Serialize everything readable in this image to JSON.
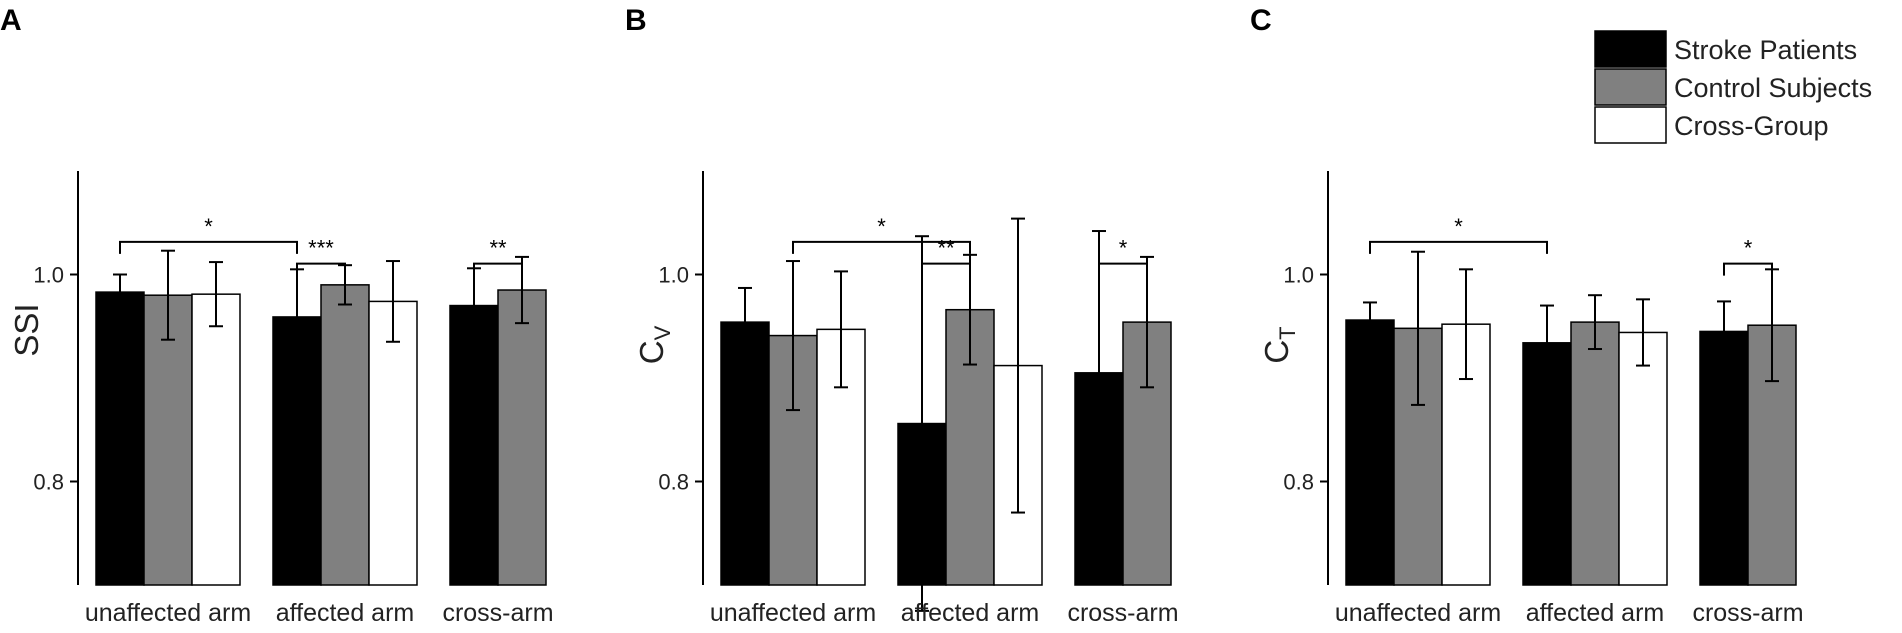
{
  "figure": {
    "legend": [
      {
        "label": "Stroke Patients",
        "color": "#000000"
      },
      {
        "label": "Control Subjects",
        "color": "#808080"
      },
      {
        "label": "Cross-Group",
        "color": "#ffffff"
      }
    ]
  },
  "chart_data": [
    {
      "type": "bar",
      "panel": "A",
      "ylabel": "SSI",
      "ylabel_sub": "",
      "ylim": [
        0.7,
        1.1
      ],
      "yticks": [
        0.8,
        1.0
      ],
      "ytick_labels": [
        "0.8",
        "1.0"
      ],
      "categories": [
        "unaffected arm",
        "affected arm",
        "cross-arm"
      ],
      "series": [
        {
          "name": "Stroke Patients",
          "values": [
            0.983,
            0.959,
            0.97
          ],
          "err_low": [
            0.017,
            0.046,
            0.036
          ],
          "err_high": [
            0.017,
            0.046,
            0.036
          ]
        },
        {
          "name": "Control Subjects",
          "values": [
            0.98,
            0.99,
            0.985
          ],
          "err_low": [
            0.043,
            0.019,
            0.032
          ],
          "err_high": [
            0.043,
            0.019,
            0.032
          ]
        },
        {
          "name": "Cross-Group",
          "values": [
            0.981,
            0.974,
            null
          ],
          "err_low": [
            0.031,
            0.039,
            null
          ],
          "err_high": [
            0.031,
            0.039,
            null
          ]
        }
      ],
      "significance": [
        {
          "from_cat": 0,
          "from_series": 0,
          "to_cat": 1,
          "to_series": 0,
          "y": 1.0315,
          "label": "*"
        },
        {
          "from_cat": 1,
          "from_series": 0,
          "to_cat": 1,
          "to_series": 1,
          "y": 1.0105,
          "label": "***"
        },
        {
          "from_cat": 2,
          "from_series": 0,
          "to_cat": 2,
          "to_series": 1,
          "y": 1.0105,
          "label": "**"
        }
      ]
    },
    {
      "type": "bar",
      "panel": "B",
      "ylabel": "C",
      "ylabel_sub": "V",
      "ylim": [
        0.7,
        1.1
      ],
      "yticks": [
        0.8,
        1.0
      ],
      "ytick_labels": [
        "0.8",
        "1.0"
      ],
      "categories": [
        "unaffected arm",
        "affected arm",
        "cross-arm"
      ],
      "series": [
        {
          "name": "Stroke Patients",
          "values": [
            0.954,
            0.856,
            0.905
          ],
          "err_low": [
            0.033,
            0.181,
            0.137
          ],
          "err_high": [
            0.033,
            0.181,
            0.137
          ]
        },
        {
          "name": "Control Subjects",
          "values": [
            0.941,
            0.966,
            0.954
          ],
          "err_low": [
            0.072,
            0.053,
            0.063
          ],
          "err_high": [
            0.072,
            0.053,
            0.063
          ]
        },
        {
          "name": "Cross-Group",
          "values": [
            0.947,
            0.912,
            null
          ],
          "err_low": [
            0.056,
            0.142,
            null
          ],
          "err_high": [
            0.056,
            0.142,
            null
          ]
        }
      ],
      "significance": [
        {
          "from_cat": 0,
          "from_series": 1,
          "to_cat": 1,
          "to_series": 1,
          "y": 1.0315,
          "label": "*"
        },
        {
          "from_cat": 1,
          "from_series": 0,
          "to_cat": 1,
          "to_series": 1,
          "y": 1.0105,
          "label": "**"
        },
        {
          "from_cat": 2,
          "from_series": 0,
          "to_cat": 2,
          "to_series": 1,
          "y": 1.0105,
          "label": "*"
        }
      ]
    },
    {
      "type": "bar",
      "panel": "C",
      "ylabel": "C",
      "ylabel_sub": "T",
      "ylim": [
        0.7,
        1.1
      ],
      "yticks": [
        0.8,
        1.0
      ],
      "ytick_labels": [
        "0.8",
        "1.0"
      ],
      "categories": [
        "unaffected arm",
        "affected arm",
        "cross-arm"
      ],
      "series": [
        {
          "name": "Stroke Patients",
          "values": [
            0.956,
            0.934,
            0.945
          ],
          "err_low": [
            0.017,
            0.036,
            0.029
          ],
          "err_high": [
            0.017,
            0.036,
            0.029
          ]
        },
        {
          "name": "Control Subjects",
          "values": [
            0.948,
            0.954,
            0.951
          ],
          "err_low": [
            0.074,
            0.026,
            0.054
          ],
          "err_high": [
            0.074,
            0.026,
            0.054
          ]
        },
        {
          "name": "Cross-Group",
          "values": [
            0.952,
            0.944,
            null
          ],
          "err_low": [
            0.053,
            0.032,
            null
          ],
          "err_high": [
            0.053,
            0.032,
            null
          ]
        }
      ],
      "significance": [
        {
          "from_cat": 0,
          "from_series": 0,
          "to_cat": 1,
          "to_series": 0,
          "y": 1.0315,
          "label": "*"
        },
        {
          "from_cat": 2,
          "from_series": 0,
          "to_cat": 2,
          "to_series": 1,
          "y": 1.0105,
          "label": "*"
        }
      ]
    }
  ]
}
